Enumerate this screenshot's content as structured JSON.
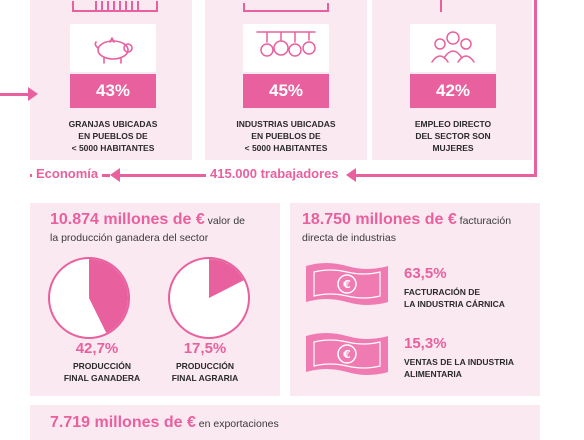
{
  "colors": {
    "accent": "#e9609e",
    "panel": "#fbe9f1"
  },
  "stats_top": [
    {
      "icon": "pig-icon",
      "percent": "43%",
      "caption": [
        "GRANJAS UBICADAS",
        "EN PUEBLOS DE",
        "< 5000 HABITANTES"
      ]
    },
    {
      "icon": "meat-icon",
      "percent": "45%",
      "caption": [
        "INDUSTRIAS UBICADAS",
        "EN PUEBLOS DE",
        "< 5000 HABITANTES"
      ]
    },
    {
      "icon": "women-icon",
      "percent": "42%",
      "caption": [
        "EMPLEO DIRECTO",
        "DEL SECTOR SON",
        "MUJERES"
      ]
    }
  ],
  "workers": "415.000 trabajadores",
  "section": "Economía",
  "production": {
    "amount": "10.874 millones de €",
    "desc1": " valor de",
    "desc2": "la producción ganadera del sector",
    "pies": [
      {
        "percent": "42,7%",
        "fraction": 0.427,
        "caption": [
          "PRODUCCIÓN",
          "FINAL GANADERA"
        ]
      },
      {
        "percent": "17,5%",
        "fraction": 0.175,
        "caption": [
          "PRODUCCIÓN",
          "FINAL AGRARIA"
        ]
      }
    ]
  },
  "industry": {
    "amount": "18.750 millones de €",
    "desc1": " facturación",
    "desc2": "directa de industrias",
    "items": [
      {
        "icon": "euro-bill-icon",
        "percent": "63,5%",
        "caption": [
          "FACTURACIÓN DE",
          "LA INDUSTRIA CÁRNICA"
        ]
      },
      {
        "icon": "euro-bill-icon",
        "percent": "15,3%",
        "caption": [
          "VENTAS DE LA INDUSTRIA",
          "ALIMENTARIA"
        ]
      }
    ]
  },
  "exports": {
    "amount": "7.719 millones de €",
    "desc": " en exportaciones"
  }
}
